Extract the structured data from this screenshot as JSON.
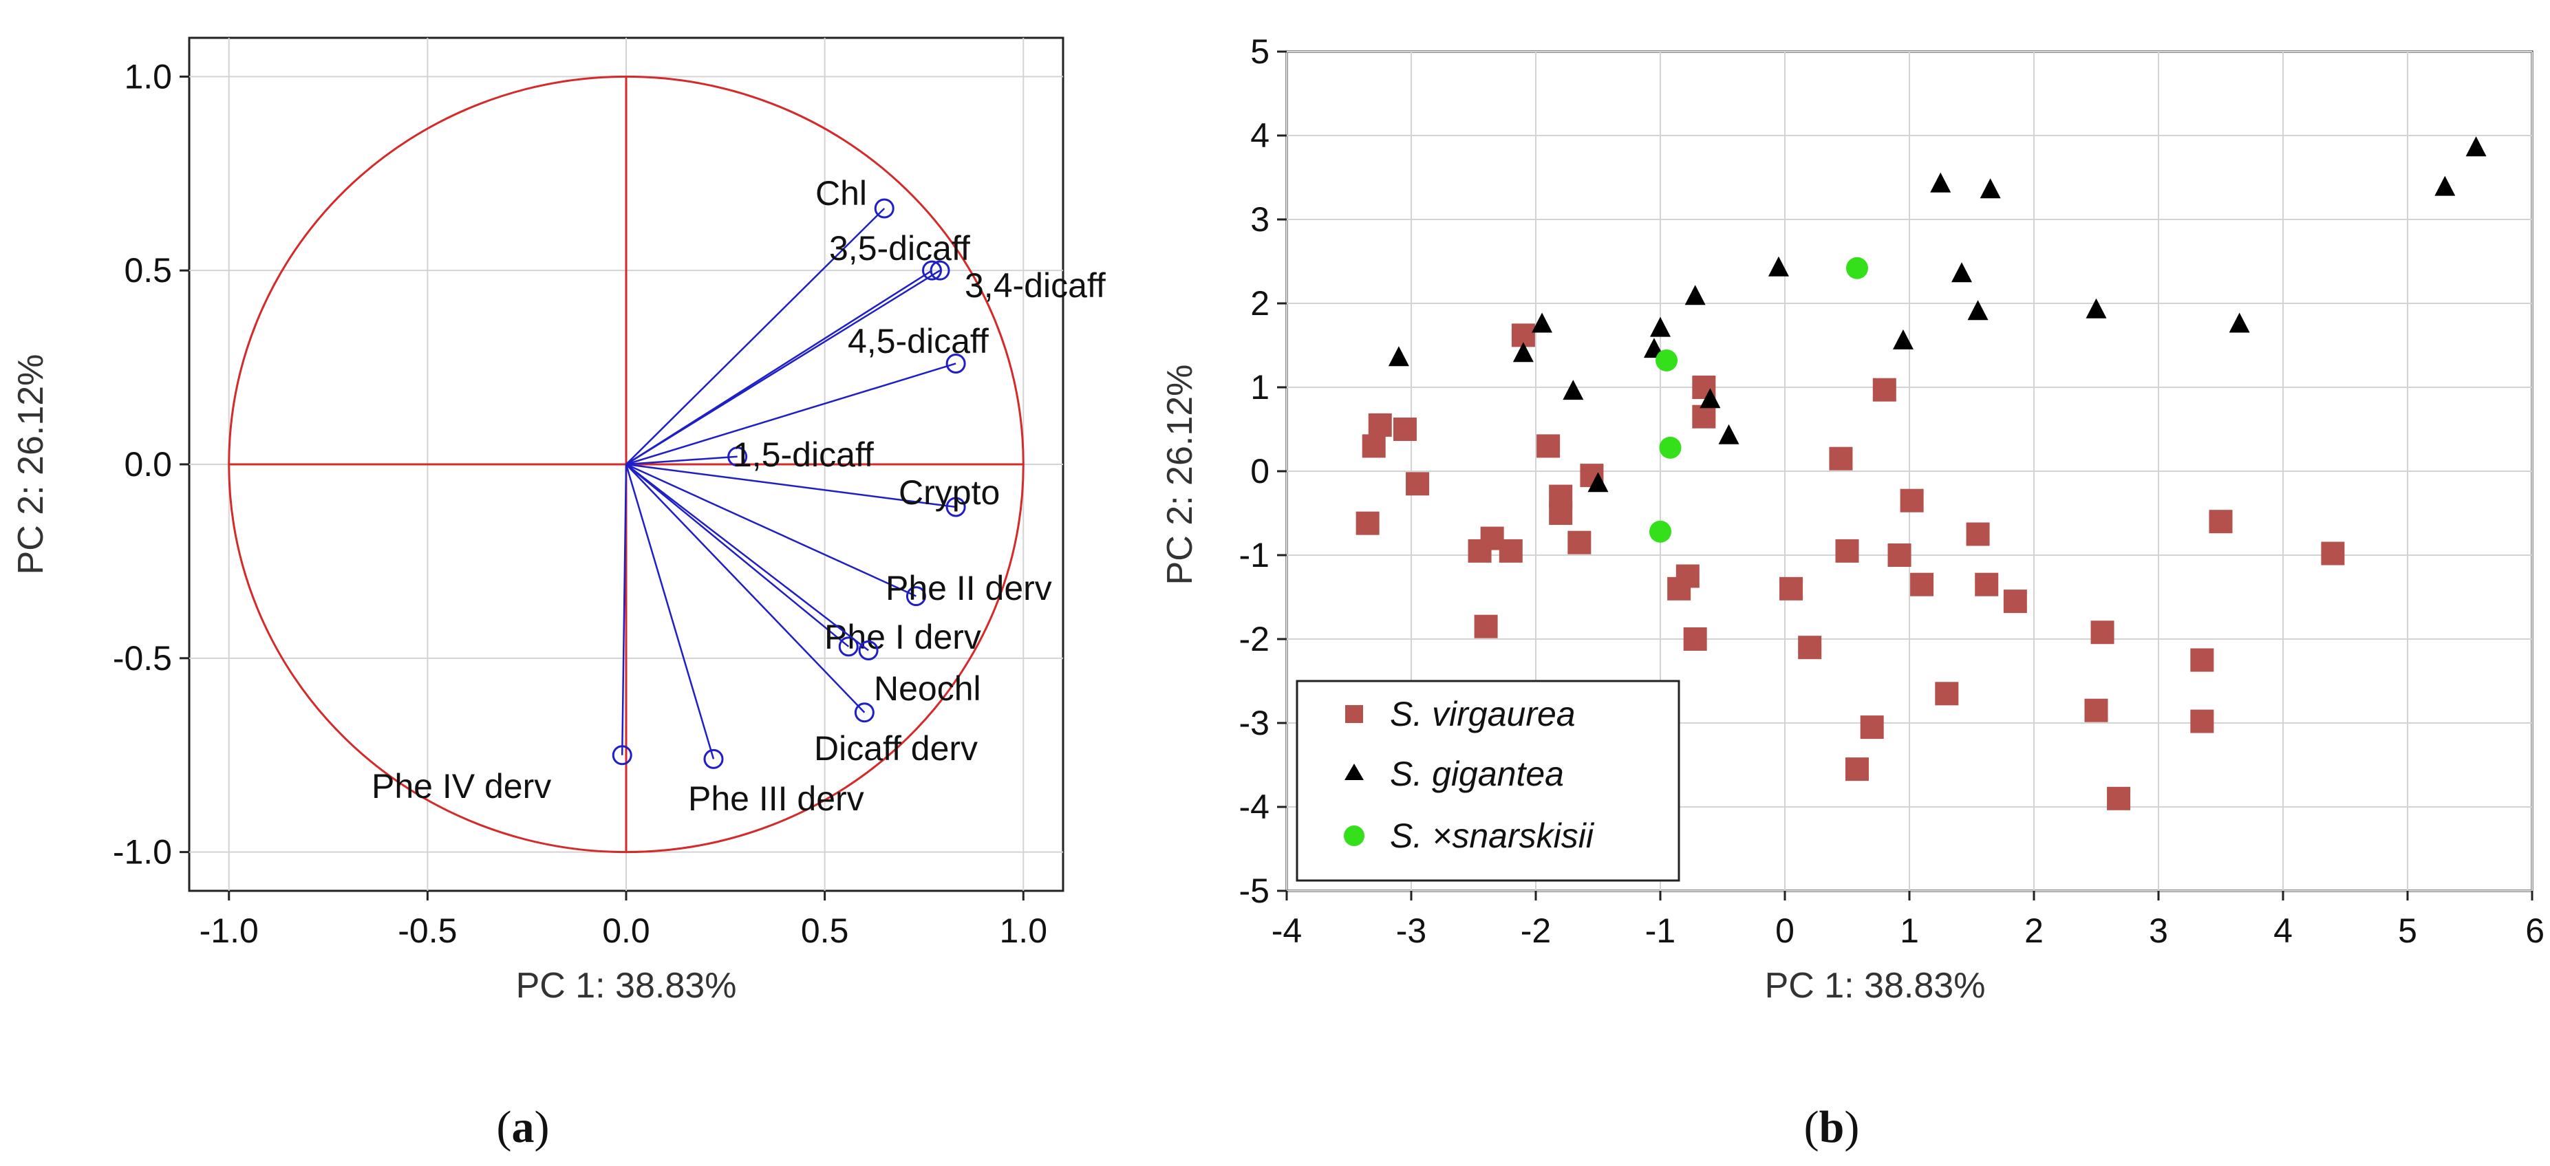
{
  "chart_data": [
    {
      "panel": "a",
      "panel_label": "a",
      "type": "scatter",
      "subtype": "pca-loading-circle",
      "xlabel": "PC 1: 38.83%",
      "ylabel": "PC 2: 26.12%",
      "xlim": [
        -1.1,
        1.1
      ],
      "ylim": [
        -1.1,
        1.1
      ],
      "xticks": [
        "-1.0",
        "-0.5",
        "0.0",
        "0.5",
        "1.0"
      ],
      "yticks": [
        "1.0",
        "0.5",
        "0.0",
        "-0.5",
        "-1.0"
      ],
      "grid": true,
      "colors": {
        "circle": "#d42a2a",
        "vector": "#1f1fc8",
        "axes": "#d42a2a"
      },
      "variables": [
        {
          "name": "Chl",
          "x": 0.65,
          "y": 0.66
        },
        {
          "name": "3,5-dicaff",
          "x": 0.77,
          "y": 0.5
        },
        {
          "name": "3,4-dicaff",
          "x": 0.79,
          "y": 0.5
        },
        {
          "name": "4,5-dicaff",
          "x": 0.83,
          "y": 0.26
        },
        {
          "name": "1,5-dicaff",
          "x": 0.28,
          "y": 0.02
        },
        {
          "name": "Crypto",
          "x": 0.83,
          "y": -0.11
        },
        {
          "name": "Phe II derv",
          "x": 0.73,
          "y": -0.34
        },
        {
          "name": "Phe I derv",
          "x": 0.56,
          "y": -0.47
        },
        {
          "name": "Neochl",
          "x": 0.61,
          "y": -0.48
        },
        {
          "name": "Dicaff derv",
          "x": 0.6,
          "y": -0.64
        },
        {
          "name": "Phe III derv",
          "x": 0.22,
          "y": -0.76
        },
        {
          "name": "Phe IV derv",
          "x": -0.01,
          "y": -0.75
        }
      ]
    },
    {
      "panel": "b",
      "panel_label": "b",
      "type": "scatter",
      "xlabel": "PC 1: 38.83%",
      "ylabel": "PC 2: 26.12%",
      "xlim": [
        -4,
        6
      ],
      "ylim": [
        -5,
        5
      ],
      "xticks": [
        "-4",
        "-3",
        "-2",
        "-1",
        "0",
        "1",
        "2",
        "3",
        "4",
        "5",
        "6"
      ],
      "yticks": [
        "5",
        "4",
        "3",
        "2",
        "1",
        "0",
        "-1",
        "-2",
        "-3",
        "-4",
        "-5"
      ],
      "grid": true,
      "legend_position": "bottom-left",
      "series": [
        {
          "name": "S. virgaurea",
          "marker": "square",
          "color": "#b5514c",
          "points": [
            [
              -3.3,
              0.3
            ],
            [
              -3.25,
              0.55
            ],
            [
              -3.35,
              -0.62
            ],
            [
              -3.05,
              0.5
            ],
            [
              -2.95,
              -0.15
            ],
            [
              -2.45,
              -0.95
            ],
            [
              -2.35,
              -0.8
            ],
            [
              -2.4,
              -1.85
            ],
            [
              -2.2,
              -0.95
            ],
            [
              -2.1,
              1.62
            ],
            [
              -1.9,
              0.3
            ],
            [
              -1.8,
              -0.3
            ],
            [
              -1.8,
              -0.5
            ],
            [
              -1.65,
              -0.85
            ],
            [
              -1.55,
              -0.05
            ],
            [
              -0.85,
              -1.4
            ],
            [
              -0.78,
              -1.25
            ],
            [
              -0.72,
              -2.0
            ],
            [
              -0.65,
              1.0
            ],
            [
              -0.65,
              0.65
            ],
            [
              0.05,
              -1.4
            ],
            [
              0.2,
              -2.1
            ],
            [
              0.45,
              0.15
            ],
            [
              0.5,
              -0.95
            ],
            [
              0.58,
              -3.55
            ],
            [
              0.7,
              -3.05
            ],
            [
              0.8,
              0.97
            ],
            [
              0.92,
              -1.0
            ],
            [
              1.02,
              -0.35
            ],
            [
              1.1,
              -1.35
            ],
            [
              1.3,
              -2.65
            ],
            [
              1.55,
              -0.75
            ],
            [
              1.62,
              -1.35
            ],
            [
              1.85,
              -1.55
            ],
            [
              2.5,
              -2.85
            ],
            [
              2.55,
              -1.92
            ],
            [
              2.68,
              -3.9
            ],
            [
              3.35,
              -2.25
            ],
            [
              3.35,
              -2.98
            ],
            [
              3.5,
              -0.6
            ],
            [
              4.4,
              -0.98
            ]
          ]
        },
        {
          "name": "S. gigantea",
          "marker": "triangle",
          "color": "#000000",
          "points": [
            [
              -3.1,
              1.35
            ],
            [
              -2.1,
              1.4
            ],
            [
              -1.95,
              1.75
            ],
            [
              -1.7,
              0.95
            ],
            [
              -1.5,
              -0.15
            ],
            [
              -1.05,
              1.45
            ],
            [
              -1.0,
              1.7
            ],
            [
              -0.72,
              2.08
            ],
            [
              -0.6,
              0.85
            ],
            [
              -0.45,
              0.42
            ],
            [
              -0.05,
              2.42
            ],
            [
              0.95,
              1.55
            ],
            [
              1.25,
              3.42
            ],
            [
              1.42,
              2.35
            ],
            [
              1.55,
              1.9
            ],
            [
              1.65,
              3.35
            ],
            [
              2.5,
              1.92
            ],
            [
              3.65,
              1.75
            ],
            [
              5.3,
              3.38
            ],
            [
              5.55,
              3.85
            ]
          ]
        },
        {
          "name": "S. ×snarskisii",
          "marker": "circle",
          "color": "#33e01a",
          "points": [
            [
              -0.95,
              1.32
            ],
            [
              -0.92,
              0.28
            ],
            [
              -1.0,
              -0.72
            ],
            [
              0.58,
              2.42
            ]
          ]
        }
      ]
    }
  ]
}
